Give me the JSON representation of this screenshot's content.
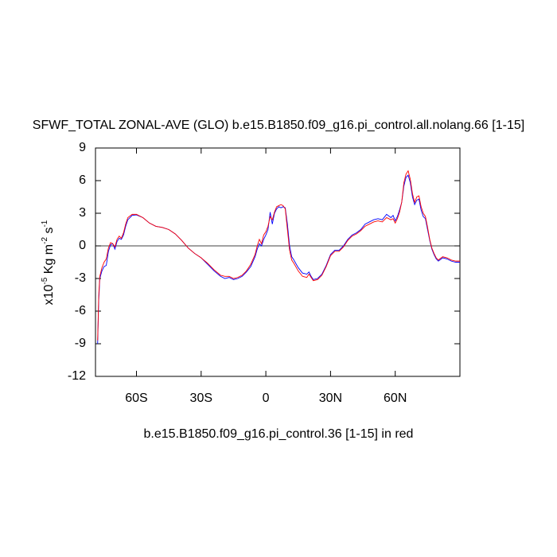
{
  "chart_data": {
    "type": "line",
    "title": "SFWF_TOTAL ZONAL-AVE (GLO) b.e15.B1850.f09_g16.pi_control.all.nolang.66 [1-15]",
    "x_label": "b.e15.B1850.f09_g16.pi_control.36 [1-15] in red",
    "y_label_parts": [
      {
        "text": "x10",
        "sup": "-5"
      },
      {
        "text": " Kg m",
        "sup": "-2"
      },
      {
        "text": " s",
        "sup": "-1"
      }
    ],
    "xlim": [
      -79,
      90
    ],
    "ylim": [
      -12,
      9
    ],
    "xticks": [
      {
        "value": -60,
        "label": "60S"
      },
      {
        "value": -30,
        "label": "30S"
      },
      0,
      {
        "value": 30,
        "label": "30N"
      },
      {
        "value": 60,
        "label": "60N"
      }
    ],
    "yticks": [
      -12,
      -9,
      -6,
      -3,
      0,
      3,
      6,
      9
    ],
    "reference_line": 0,
    "x": [
      -78,
      -77.5,
      -77,
      -76,
      -75,
      -74,
      -73,
      -72,
      -71,
      -70,
      -69,
      -68,
      -67,
      -66,
      -65,
      -64,
      -62,
      -60,
      -57,
      -54,
      -51,
      -48,
      -45,
      -42,
      -39,
      -36,
      -33,
      -30,
      -27,
      -24,
      -21,
      -19,
      -17,
      -15,
      -13,
      -11,
      -9,
      -7,
      -5,
      -4,
      -3,
      -2,
      -1,
      0,
      1,
      2,
      3,
      4,
      5,
      6,
      7,
      8,
      9,
      10,
      11,
      12,
      13,
      15,
      17,
      19,
      20,
      21,
      22,
      24,
      26,
      28,
      30,
      32,
      34,
      36,
      38,
      40,
      42,
      44,
      46,
      48,
      50,
      52,
      54,
      56,
      58,
      59,
      60,
      61,
      62,
      63,
      64,
      65,
      66,
      67,
      68,
      69,
      70,
      71,
      72,
      73,
      74,
      75,
      76,
      77,
      78,
      79,
      80,
      82,
      84,
      86,
      88,
      90
    ],
    "series": [
      {
        "color": "#0000ff",
        "values": [
          -9.0,
          -5.0,
          -3.0,
          -2.3,
          -1.9,
          -1.8,
          -0.5,
          0.1,
          0.2,
          -0.3,
          0.4,
          0.7,
          0.6,
          1.0,
          1.8,
          2.4,
          2.8,
          2.85,
          2.6,
          2.1,
          1.8,
          1.7,
          1.5,
          1.1,
          0.5,
          -0.2,
          -0.7,
          -1.1,
          -1.7,
          -2.3,
          -2.8,
          -3.0,
          -2.9,
          -3.1,
          -3.0,
          -2.8,
          -2.4,
          -1.9,
          -1.0,
          -0.3,
          0.2,
          0.0,
          0.6,
          1.0,
          1.5,
          3.1,
          2.0,
          3.0,
          3.4,
          3.6,
          3.5,
          3.6,
          3.5,
          2.0,
          0.0,
          -1.0,
          -1.3,
          -2.0,
          -2.5,
          -2.6,
          -2.4,
          -2.8,
          -3.1,
          -3.0,
          -2.6,
          -1.8,
          -0.8,
          -0.4,
          -0.4,
          0.0,
          0.6,
          1.0,
          1.2,
          1.5,
          2.0,
          2.2,
          2.4,
          2.5,
          2.4,
          2.9,
          2.6,
          2.8,
          2.3,
          2.7,
          3.3,
          4.0,
          5.5,
          6.3,
          6.5,
          5.8,
          4.5,
          3.8,
          4.2,
          4.3,
          3.3,
          2.7,
          2.5,
          1.5,
          0.5,
          -0.3,
          -0.8,
          -1.2,
          -1.4,
          -1.1,
          -1.2,
          -1.4,
          -1.5,
          -1.5
        ]
      },
      {
        "color": "#ff0000",
        "values": [
          -8.7,
          -4.6,
          -2.8,
          -2.0,
          -1.5,
          -1.2,
          -0.2,
          0.3,
          0.2,
          -0.1,
          0.6,
          0.9,
          0.7,
          1.2,
          2.0,
          2.6,
          2.9,
          2.9,
          2.6,
          2.1,
          1.8,
          1.7,
          1.5,
          1.1,
          0.5,
          -0.2,
          -0.7,
          -1.1,
          -1.6,
          -2.2,
          -2.7,
          -2.8,
          -2.8,
          -3.0,
          -2.9,
          -2.7,
          -2.3,
          -1.7,
          -0.8,
          0.0,
          0.6,
          0.2,
          1.0,
          1.3,
          1.8,
          2.7,
          2.4,
          3.1,
          3.6,
          3.7,
          3.8,
          3.7,
          3.4,
          1.5,
          -0.4,
          -1.3,
          -1.6,
          -2.3,
          -2.8,
          -2.9,
          -2.6,
          -2.9,
          -3.2,
          -3.1,
          -2.7,
          -1.9,
          -0.9,
          -0.5,
          -0.5,
          -0.1,
          0.5,
          0.9,
          1.1,
          1.4,
          1.8,
          2.0,
          2.2,
          2.3,
          2.2,
          2.6,
          2.4,
          2.5,
          2.1,
          2.5,
          3.1,
          4.0,
          5.8,
          6.6,
          6.9,
          6.1,
          4.8,
          4.0,
          4.5,
          4.6,
          3.6,
          3.0,
          2.7,
          1.7,
          0.6,
          -0.2,
          -0.7,
          -1.1,
          -1.3,
          -1.0,
          -1.1,
          -1.3,
          -1.4,
          -1.4
        ]
      }
    ]
  }
}
